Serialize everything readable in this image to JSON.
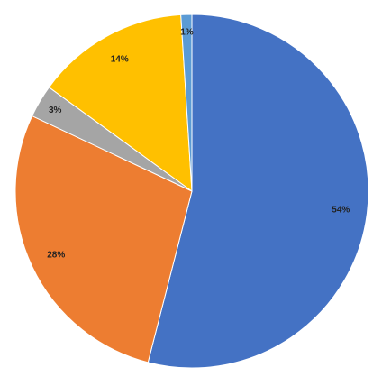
{
  "chart_data": {
    "type": "pie",
    "values": [
      54,
      28,
      3,
      14,
      1
    ],
    "value_labels": [
      "54%",
      "28%",
      "3%",
      "14%",
      "1%"
    ],
    "colors": [
      "#4472c4",
      "#ed7d31",
      "#a5a5a5",
      "#ffc000",
      "#5b9bd5"
    ]
  }
}
